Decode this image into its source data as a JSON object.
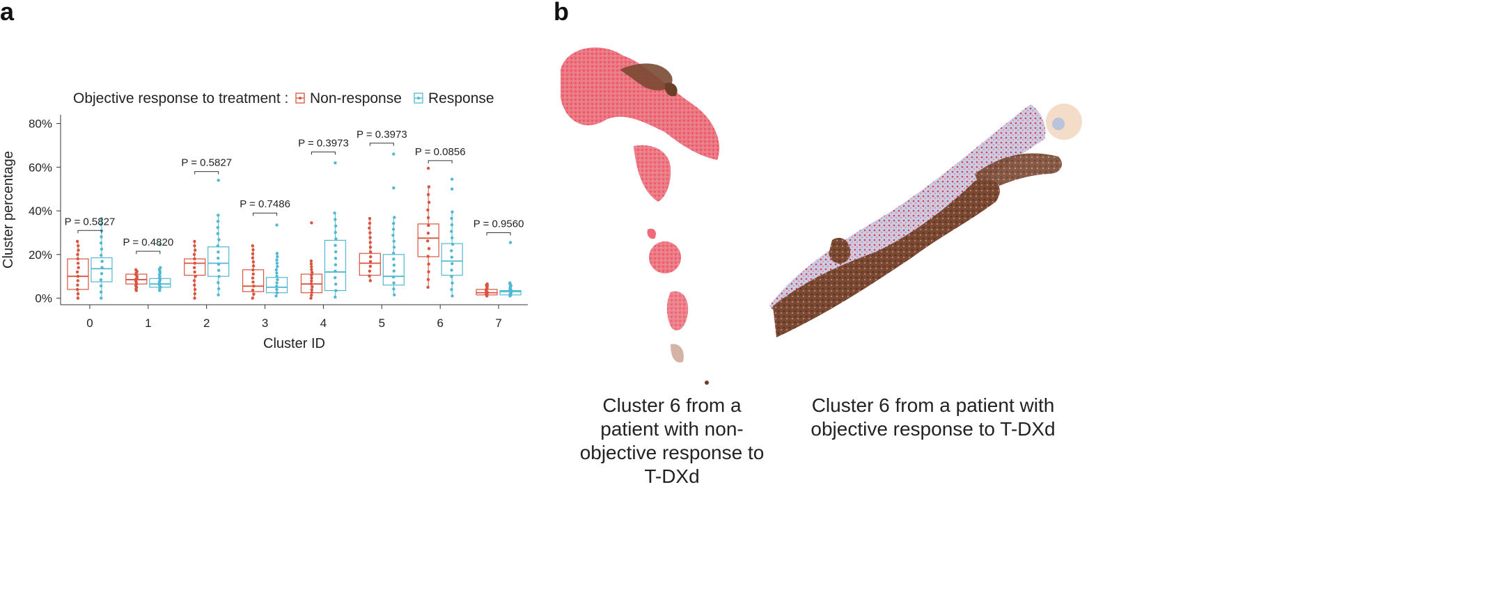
{
  "panels": {
    "a": "a",
    "b": "b"
  },
  "chart_data": {
    "type": "box",
    "legend": {
      "title": "Objective response to treatment :",
      "placement": "top",
      "series": [
        {
          "name": "Non-response",
          "color": "#d9533f"
        },
        {
          "name": "Response",
          "color": "#4fb9d1"
        }
      ]
    },
    "xlabel": "Cluster ID",
    "ylabel": "Cluster percentage",
    "ylim": [
      -3,
      84
    ],
    "yticks": [
      0,
      20,
      40,
      60,
      80
    ],
    "ytick_labels": [
      "0%",
      "20%",
      "40%",
      "60%",
      "80%"
    ],
    "categories": [
      "0",
      "1",
      "2",
      "3",
      "4",
      "5",
      "6",
      "7"
    ],
    "series": [
      {
        "name": "Non-response",
        "color": "#d9533f",
        "boxes": [
          {
            "min": 0,
            "q1": 4,
            "median": 10,
            "q3": 18,
            "max": 26
          },
          {
            "min": 3.5,
            "q1": 6.5,
            "median": 8.5,
            "q3": 11,
            "max": 13
          },
          {
            "min": 0,
            "q1": 10.5,
            "median": 16,
            "q3": 18,
            "max": 26
          },
          {
            "min": 0,
            "q1": 3,
            "median": 5.5,
            "q3": 13,
            "max": 24
          },
          {
            "min": 0,
            "q1": 2.5,
            "median": 6.5,
            "q3": 11,
            "max": 17,
            "outliers": [
              34.5
            ]
          },
          {
            "min": 8,
            "q1": 10.5,
            "median": 16,
            "q3": 20.5,
            "max": 36.5
          },
          {
            "min": 5,
            "q1": 19,
            "median": 27.5,
            "q3": 34,
            "max": 51,
            "outliers": [
              59.5
            ]
          },
          {
            "min": 1,
            "q1": 1.5,
            "median": 2.5,
            "q3": 4,
            "max": 6.5
          }
        ]
      },
      {
        "name": "Response",
        "color": "#4fb9d1",
        "boxes": [
          {
            "min": 0,
            "q1": 7.5,
            "median": 13.5,
            "q3": 18.5,
            "max": 36.5
          },
          {
            "min": 3.5,
            "q1": 5,
            "median": 6.5,
            "q3": 9,
            "max": 14,
            "outliers": [
              24.5
            ]
          },
          {
            "min": 1.5,
            "q1": 10,
            "median": 16,
            "q3": 23.5,
            "max": 38,
            "outliers": [
              54
            ]
          },
          {
            "min": 1,
            "q1": 2.5,
            "median": 5,
            "q3": 9.5,
            "max": 20.5,
            "outliers": [
              33.5
            ]
          },
          {
            "min": 0.5,
            "q1": 3.5,
            "median": 12,
            "q3": 26.5,
            "max": 39,
            "outliers": [
              62
            ]
          },
          {
            "min": 1.5,
            "q1": 6,
            "median": 10,
            "q3": 20,
            "max": 37,
            "outliers": [
              50.5,
              66
            ]
          },
          {
            "min": 1,
            "q1": 10.5,
            "median": 17,
            "q3": 25,
            "max": 39.5,
            "outliers": [
              50,
              54.5
            ]
          },
          {
            "min": 1,
            "q1": 1.5,
            "median": 3,
            "q3": 3.5,
            "max": 7,
            "outliers": [
              25.5
            ]
          }
        ]
      }
    ],
    "annotations": [
      {
        "category": "0",
        "label": "P = 0.5827",
        "y": 31
      },
      {
        "category": "1",
        "label": "P = 0.4820",
        "y": 21.5
      },
      {
        "category": "2",
        "label": "P = 0.5827",
        "y": 58
      },
      {
        "category": "3",
        "label": "P = 0.7486",
        "y": 39
      },
      {
        "category": "4",
        "label": "P = 0.3973",
        "y": 67
      },
      {
        "category": "5",
        "label": "P = 0.3973",
        "y": 71
      },
      {
        "category": "6",
        "label": "P = 0.0856",
        "y": 63
      },
      {
        "category": "7",
        "label": "P = 0.9560",
        "y": 30
      }
    ]
  },
  "images": {
    "left_caption": "Cluster 6 from a patient with non-objective response to T-DXd",
    "right_caption": "Cluster 6 from a patient with objective response to T-DXd"
  }
}
